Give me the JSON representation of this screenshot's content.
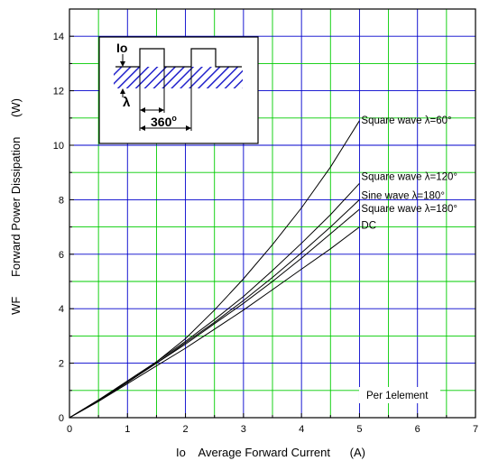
{
  "chart_data": {
    "type": "line",
    "title": "",
    "xlabel": "Io    Average Forward Current      (A)",
    "ylabel": "WF      Forward Power Dissipation      (W)",
    "xlim": [
      0,
      7
    ],
    "ylim": [
      0,
      15
    ],
    "x_ticks": [
      "0",
      "1",
      "2",
      "3",
      "4",
      "5",
      "6",
      "7"
    ],
    "y_ticks": [
      "0",
      "2",
      "4",
      "6",
      "8",
      "10",
      "12",
      "14"
    ],
    "grid": true,
    "grid_colors": {
      "major": "#0000cc",
      "minor": "#00cc00"
    },
    "series": [
      {
        "name": "Square wave λ=60°",
        "x": [
          0,
          0.5,
          1,
          1.5,
          2,
          2.5,
          3,
          3.5,
          4,
          4.5,
          5
        ],
        "y": [
          0,
          0.6,
          1.3,
          2.05,
          2.9,
          3.95,
          5.1,
          6.35,
          7.7,
          9.2,
          10.9
        ]
      },
      {
        "name": "Square wave λ=120°",
        "x": [
          0,
          0.5,
          1,
          1.5,
          2,
          2.5,
          3,
          3.5,
          4,
          4.5,
          5
        ],
        "y": [
          0,
          0.65,
          1.35,
          2.05,
          2.8,
          3.6,
          4.45,
          5.4,
          6.4,
          7.45,
          8.6
        ]
      },
      {
        "name": "Sine wave λ=180°",
        "x": [
          0,
          0.5,
          1,
          1.5,
          2,
          2.5,
          3,
          3.5,
          4,
          4.5,
          5
        ],
        "y": [
          0,
          0.65,
          1.3,
          2.0,
          2.75,
          3.5,
          4.3,
          5.15,
          6.05,
          7.0,
          8.0
        ]
      },
      {
        "name": "Square wave λ=180°",
        "x": [
          0,
          0.5,
          1,
          1.5,
          2,
          2.5,
          3,
          3.5,
          4,
          4.5,
          5
        ],
        "y": [
          0,
          0.65,
          1.3,
          2.0,
          2.7,
          3.45,
          4.2,
          5.0,
          5.85,
          6.75,
          7.65
        ]
      },
      {
        "name": "DC",
        "x": [
          0,
          0.5,
          1,
          1.5,
          2,
          2.5,
          3,
          3.5,
          4,
          4.5,
          5
        ],
        "y": [
          0,
          0.6,
          1.25,
          1.9,
          2.55,
          3.25,
          3.95,
          4.7,
          5.45,
          6.2,
          7.0
        ]
      }
    ],
    "annotations": [
      "Per 1element"
    ],
    "inset": {
      "io_label": "Io",
      "lambda_label": "λ",
      "period_label": "360",
      "period_sup": "o"
    }
  }
}
